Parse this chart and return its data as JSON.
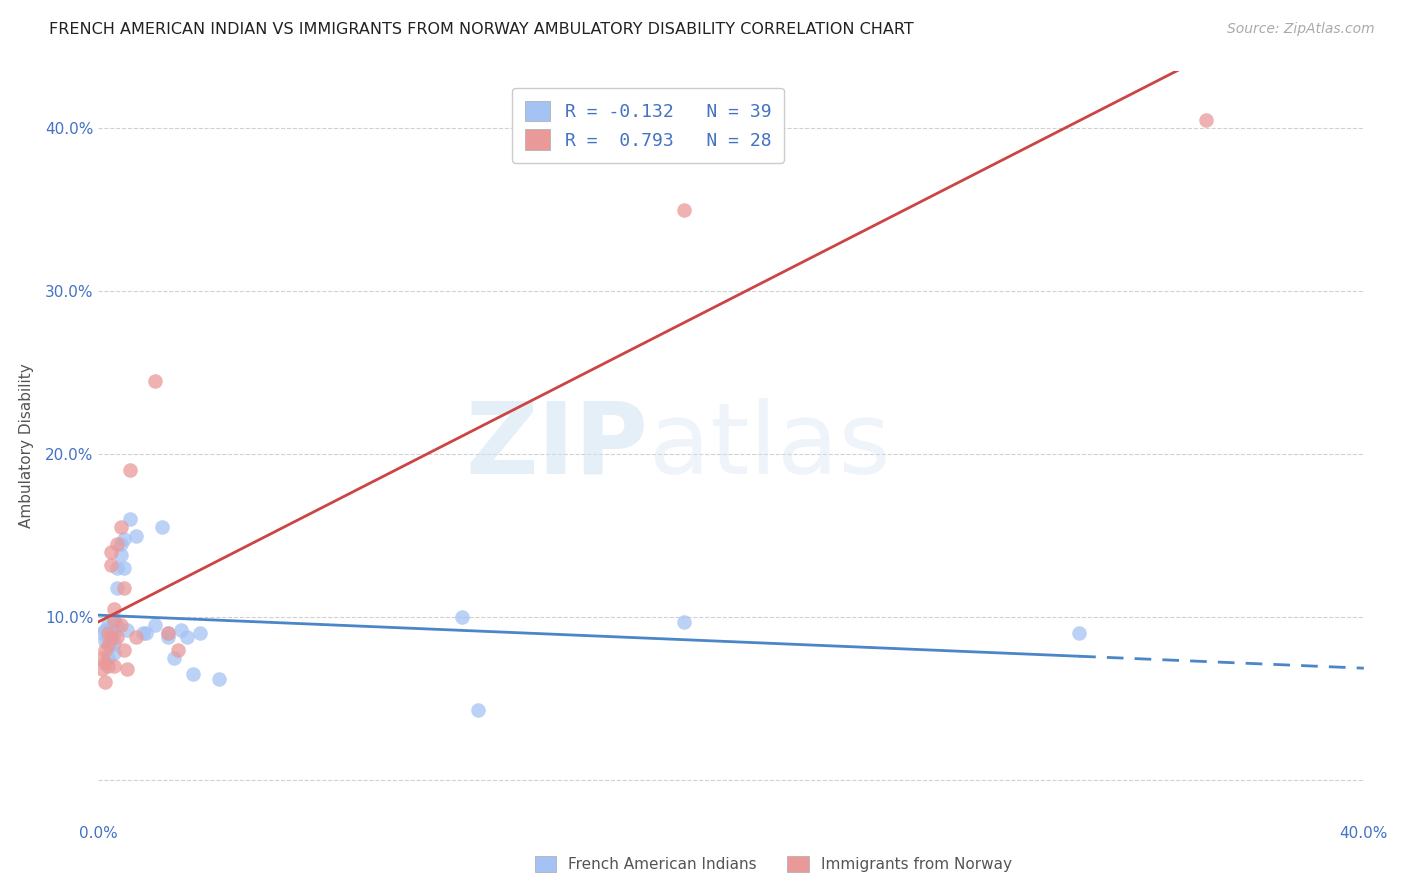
{
  "title": "FRENCH AMERICAN INDIAN VS IMMIGRANTS FROM NORWAY AMBULATORY DISABILITY CORRELATION CHART",
  "source": "Source: ZipAtlas.com",
  "ylabel": "Ambulatory Disability",
  "xlim": [
    0.0,
    0.4
  ],
  "ylim": [
    -0.025,
    0.435
  ],
  "xticks": [
    0.0,
    0.05,
    0.1,
    0.15,
    0.2,
    0.25,
    0.3,
    0.35,
    0.4
  ],
  "xtick_labels": [
    "0.0%",
    "",
    "",
    "",
    "",
    "",
    "",
    "",
    "40.0%"
  ],
  "yticks": [
    0.0,
    0.1,
    0.2,
    0.3,
    0.4
  ],
  "ytick_labels": [
    "",
    "10.0%",
    "20.0%",
    "30.0%",
    "40.0%"
  ],
  "R_blue": -0.132,
  "N_blue": 39,
  "R_pink": 0.793,
  "N_pink": 28,
  "blue_color": "#a4c2f4",
  "pink_color": "#ea9999",
  "line_blue": "#4a86c8",
  "line_pink": "#cc4444",
  "blue_x": [
    0.001,
    0.002,
    0.002,
    0.003,
    0.003,
    0.003,
    0.004,
    0.004,
    0.004,
    0.005,
    0.005,
    0.005,
    0.005,
    0.006,
    0.006,
    0.006,
    0.007,
    0.007,
    0.008,
    0.008,
    0.009,
    0.01,
    0.012,
    0.014,
    0.015,
    0.018,
    0.02,
    0.022,
    0.022,
    0.024,
    0.026,
    0.028,
    0.03,
    0.032,
    0.038,
    0.115,
    0.12,
    0.185,
    0.31
  ],
  "blue_y": [
    0.09,
    0.092,
    0.085,
    0.095,
    0.088,
    0.075,
    0.093,
    0.087,
    0.082,
    0.097,
    0.09,
    0.084,
    0.078,
    0.13,
    0.118,
    0.095,
    0.145,
    0.138,
    0.148,
    0.13,
    0.092,
    0.16,
    0.15,
    0.09,
    0.09,
    0.095,
    0.155,
    0.09,
    0.088,
    0.075,
    0.092,
    0.088,
    0.065,
    0.09,
    0.062,
    0.1,
    0.043,
    0.097,
    0.09
  ],
  "pink_x": [
    0.001,
    0.001,
    0.002,
    0.002,
    0.002,
    0.003,
    0.003,
    0.003,
    0.004,
    0.004,
    0.004,
    0.005,
    0.005,
    0.005,
    0.006,
    0.006,
    0.007,
    0.007,
    0.008,
    0.008,
    0.009,
    0.01,
    0.012,
    0.018,
    0.022,
    0.025,
    0.185,
    0.35
  ],
  "pink_y": [
    0.068,
    0.075,
    0.08,
    0.072,
    0.06,
    0.09,
    0.083,
    0.07,
    0.14,
    0.132,
    0.088,
    0.105,
    0.098,
    0.07,
    0.145,
    0.088,
    0.155,
    0.095,
    0.118,
    0.08,
    0.068,
    0.19,
    0.088,
    0.245,
    0.09,
    0.08,
    0.35,
    0.405
  ],
  "watermark_zip": "ZIP",
  "watermark_atlas": "atlas",
  "legend_label_blue": "French American Indians",
  "legend_label_pink": "Immigrants from Norway",
  "background_color": "#ffffff",
  "grid_color": "#cccccc",
  "tick_color": "#4472c4",
  "label_color": "#555555"
}
